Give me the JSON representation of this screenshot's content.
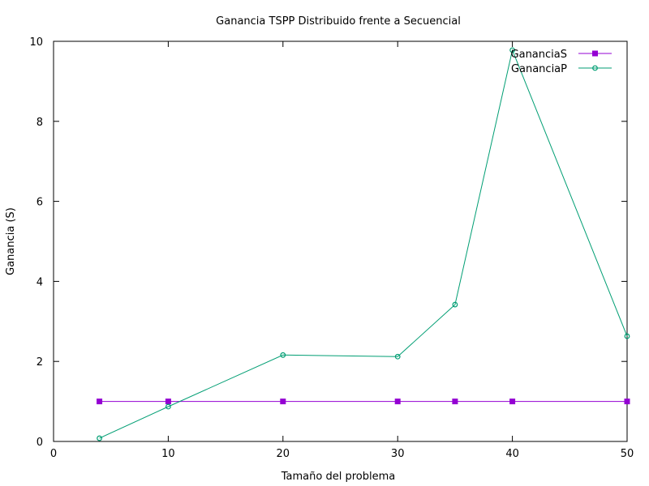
{
  "chart_data": {
    "type": "line",
    "title": "Ganancia TSPP Distribuido frente a Secuencial",
    "xlabel": "Tamaño del problema",
    "ylabel": "Ganancia (S)",
    "xlim": [
      0,
      50
    ],
    "ylim": [
      0,
      10
    ],
    "xticks": [
      0,
      10,
      20,
      30,
      40,
      50
    ],
    "yticks": [
      0,
      2,
      4,
      6,
      8,
      10
    ],
    "grid": false,
    "legend_position": "top-right",
    "series": [
      {
        "name": "GananciaS",
        "color": "#9400d3",
        "marker": "filled-square",
        "x": [
          4,
          10,
          20,
          30,
          35,
          40,
          50
        ],
        "y": [
          1,
          1,
          1,
          1,
          1,
          1,
          1
        ]
      },
      {
        "name": "GananciaP",
        "color": "#009e73",
        "marker": "circle",
        "x": [
          4,
          10,
          20,
          30,
          35,
          40,
          50
        ],
        "y": [
          0.08,
          0.87,
          2.16,
          2.12,
          3.42,
          9.78,
          2.63
        ]
      }
    ]
  }
}
